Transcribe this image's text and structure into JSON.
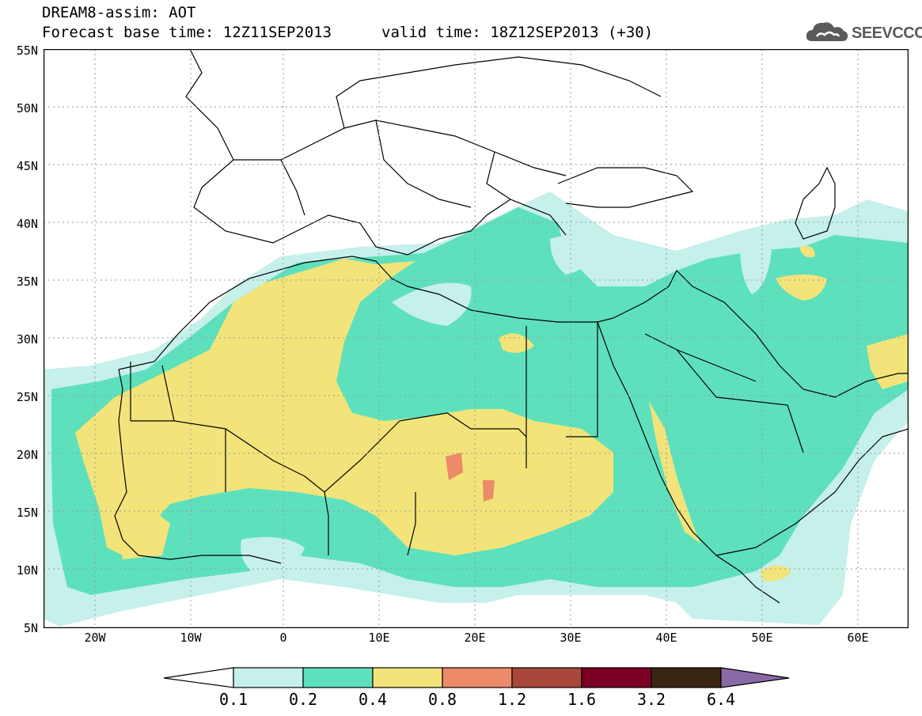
{
  "header": {
    "title": "DREAM8-assim: AOT",
    "base_time": "Forecast base time: 12Z11SEP2013",
    "valid_time": "valid time: 18Z12SEP2013 (+30)"
  },
  "logo": {
    "text": "SEEVCCC",
    "icon": "cloud-icon"
  },
  "map": {
    "lat_labels": [
      "55N",
      "50N",
      "45N",
      "40N",
      "35N",
      "30N",
      "25N",
      "20N",
      "15N",
      "10N",
      "5N"
    ],
    "lon_labels": [
      "20W",
      "10W",
      "0",
      "10E",
      "20E",
      "30E",
      "40E",
      "50E",
      "60E"
    ],
    "lat_range": [
      5,
      55
    ],
    "lon_range": [
      -25,
      65
    ],
    "projection": "lat-lon"
  },
  "legend": {
    "labels": [
      "0.1",
      "0.2",
      "0.4",
      "0.8",
      "1.2",
      "1.6",
      "3.2",
      "6.4"
    ],
    "colors": [
      "#c6f0ea",
      "#5ee0bd",
      "#f2e47a",
      "#ec8a6a",
      "#a8473a",
      "#7c0024",
      "#3a2412",
      "#8a6aa6"
    ]
  }
}
